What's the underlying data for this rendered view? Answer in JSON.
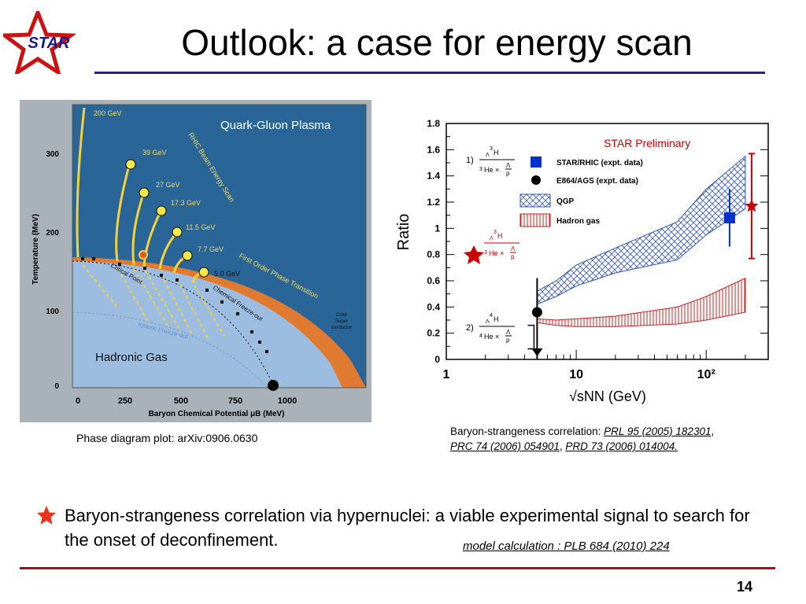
{
  "slide": {
    "title": "Outlook: a case for energy scan",
    "logo_text": "STAR",
    "page_number": "14"
  },
  "phase_figure": {
    "caption": "Phase diagram plot: arXiv:0906.0630",
    "region_qgp": "Quark-Gluon Plasma",
    "region_hadronic": "Hadronic Gas",
    "color_superconductor": [
      "Color",
      "Super",
      "conductor"
    ],
    "beam_scan_label": "RHIC Beam Energy Scan",
    "first_order_label": "First Order Phase Transition",
    "critical_point_label": "Critical Point",
    "chem_freezeout_label": "Chemical Freeze-out",
    "kinetic_freezeout_label": "Kinetic Freeze-out",
    "energies": [
      "200 GeV",
      "39 GeV",
      "27 GeV",
      "17.3 GeV",
      "11.5 GeV",
      "7.7 GeV",
      "5.0 GeV"
    ],
    "y_axis_label": "Temperature (MeV)",
    "y_ticks": [
      "300",
      "200",
      "100",
      "0"
    ],
    "x_axis_label": "Baryon Chemical Potential μB (MeV)",
    "x_ticks": [
      "0",
      "250",
      "500",
      "750",
      "1000"
    ]
  },
  "ratio_figure": {
    "preliminary_label": "STAR Preliminary",
    "y_axis_label": "Ratio",
    "x_axis_label": "√sNN (GeV)",
    "y_ticks": [
      "1.8",
      "1.6",
      "1.4",
      "1.2",
      "1",
      "0.8",
      "0.6",
      "0.4",
      "0.2",
      "0"
    ],
    "x_ticks": [
      "1",
      "10",
      "10²"
    ],
    "ratio1_prefix": "1)",
    "ratio2_prefix": "2)",
    "legend": {
      "star": "STAR/RHIC (expt. data)",
      "e864": "E864/AGS (expt. data)",
      "qgp": "QGP",
      "hadron_gas": "Hadron gas"
    },
    "colors": {
      "star": "#0033cc",
      "e864": "#000000",
      "qgp": "#3355bb",
      "hadron": "#cc2222",
      "preliminary": "#cc0000"
    }
  },
  "chart_data": {
    "type": "scatter",
    "title": "STAR Preliminary",
    "xlabel": "√sNN (GeV)",
    "ylabel": "Ratio",
    "x_scale": "log",
    "xlim": [
      1,
      300
    ],
    "ylim": [
      0,
      1.8
    ],
    "series": [
      {
        "name": "STAR/RHIC (expt. data)",
        "points": [
          {
            "x": 200,
            "y": 1.08,
            "err_low": 0.22,
            "err_high": 0.22
          }
        ]
      },
      {
        "name": "E864/AGS (expt. data)",
        "points": [
          {
            "x": 5,
            "y": 0.36,
            "err_low": 0.36,
            "err_high": 0.26
          }
        ]
      },
      {
        "name": "QGP",
        "band": {
          "x": [
            5,
            7,
            10,
            20,
            60,
            100,
            200
          ],
          "low": [
            0.42,
            0.48,
            0.56,
            0.66,
            0.76,
            0.95,
            1.15
          ],
          "high": [
            0.52,
            0.6,
            0.72,
            0.85,
            1.05,
            1.3,
            1.55
          ]
        }
      },
      {
        "name": "Hadron gas",
        "band": {
          "x": [
            5,
            7,
            10,
            20,
            60,
            100,
            200
          ],
          "low": [
            0.28,
            0.26,
            0.25,
            0.25,
            0.27,
            0.3,
            0.36
          ],
          "high": [
            0.31,
            0.3,
            0.31,
            0.33,
            0.4,
            0.48,
            0.62
          ]
        }
      }
    ],
    "highlighted_points": [
      {
        "x": 200,
        "y": 1.17,
        "err_low": 0.4,
        "err_high": 0.4
      },
      {
        "x": 5,
        "y": 0.17
      }
    ]
  },
  "ratio_caption": {
    "prefix": "Baryon-strangeness correlation: ",
    "ref1": "PRL 95 (2005) 182301",
    "sep1": ",",
    "ref2": "PRC 74 (2006) 054901",
    "sep2": ", ",
    "ref3": "PRD 73 (2006) 014004."
  },
  "bullet": {
    "text": "Baryon-strangeness correlation via hypernuclei: a viable experimental signal to search for the onset of deconfinement."
  },
  "model_reference": "model calculation : PLB 684 (2010) 224"
}
